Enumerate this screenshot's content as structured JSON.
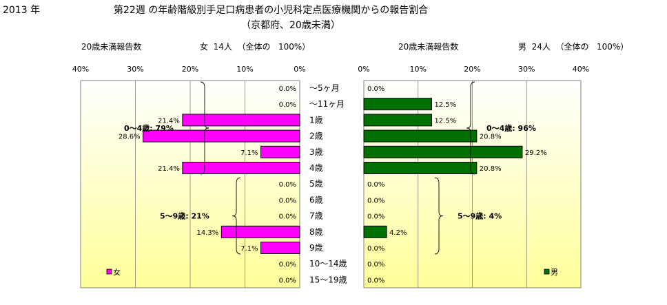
{
  "header": {
    "year": "2013 年",
    "title_line1": "第22週 の年齢階級別手足口病患者の小児科定点医療機関からの報告割合",
    "title_line2": "（京都府、20歳未満）"
  },
  "colors": {
    "female": "#ff00ff",
    "male": "#007000",
    "grid": "#808080",
    "bg_top": "#ffffff",
    "bg_bottom": "#ffff99"
  },
  "chart_data": [
    {
      "type": "bar",
      "orientation": "horizontal-left",
      "count_label": "20歳未満報告数",
      "summary": "女  14人  （全体の   100%）",
      "legend": "女",
      "xlim": [
        0,
        40
      ],
      "ticks": [
        "40%",
        "30%",
        "20%",
        "10%",
        "0%"
      ],
      "values": [
        0.0,
        0.0,
        21.4,
        28.6,
        7.1,
        21.4,
        0.0,
        0.0,
        0.0,
        14.3,
        7.1,
        0.0,
        0.0
      ],
      "labels": [
        "0.0%",
        "0.0%",
        "21.4%",
        "28.6%",
        "7.1%",
        "21.4%",
        "0.0%",
        "0.0%",
        "0.0%",
        "14.3%",
        "7.1%",
        "0.0%",
        "0.0%"
      ],
      "groups": [
        {
          "label": "0～4歳:  79%",
          "from": 0,
          "to": 5
        },
        {
          "label": "5～9歳:  21%",
          "from": 6,
          "to": 10
        }
      ]
    },
    {
      "type": "bar",
      "orientation": "horizontal-right",
      "count_label": "20歳未満報告数",
      "summary": "男  24人  （全体の   100%）",
      "legend": "男",
      "xlim": [
        0,
        40
      ],
      "ticks": [
        "0%",
        "10%",
        "20%",
        "30%",
        "40%"
      ],
      "values": [
        0.0,
        12.5,
        12.5,
        20.8,
        29.2,
        20.8,
        0.0,
        0.0,
        0.0,
        4.2,
        0.0,
        0.0,
        0.0
      ],
      "labels": [
        "0.0%",
        "12.5%",
        "12.5%",
        "20.8%",
        "29.2%",
        "20.8%",
        "0.0%",
        "0.0%",
        "0.0%",
        "4.2%",
        "0.0%",
        "0.0%",
        "0.0%"
      ],
      "groups": [
        {
          "label": "0～4歳:  96%",
          "from": 0,
          "to": 5
        },
        {
          "label": "5～9歳:  4%",
          "from": 6,
          "to": 10
        }
      ]
    }
  ],
  "categories": [
    "～5ヶ月",
    "～11ヶ月",
    "1歳",
    "2歳",
    "3歳",
    "4歳",
    "5歳",
    "6歳",
    "7歳",
    "8歳",
    "9歳",
    "10～14歳",
    "15～19歳"
  ]
}
